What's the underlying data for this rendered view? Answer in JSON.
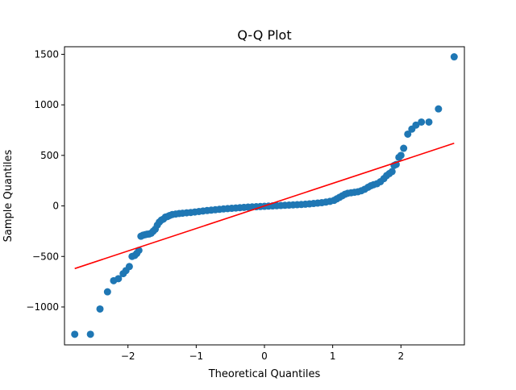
{
  "chart_data": {
    "type": "scatter",
    "title": "Q-Q Plot",
    "xlabel": "Theoretical Quantiles",
    "ylabel": "Sample Quantiles",
    "xlim": [
      -2.93,
      2.93
    ],
    "ylim": [
      -1375,
      1575
    ],
    "xticks": [
      -2,
      -1,
      0,
      1,
      2
    ],
    "xtick_labels": [
      "−2",
      "−1",
      "0",
      "1",
      "2"
    ],
    "yticks": [
      -1000,
      -500,
      0,
      500,
      1000,
      1500
    ],
    "ytick_labels": [
      "−1000",
      "−500",
      "0",
      "500",
      "1000",
      "1500"
    ],
    "grid": false,
    "marker_color": "#1f77b4",
    "line_color": "#ff0000",
    "points": [
      [
        -2.78,
        -1270
      ],
      [
        -2.55,
        -1270
      ],
      [
        -2.41,
        -1020
      ],
      [
        -2.3,
        -850
      ],
      [
        -2.21,
        -740
      ],
      [
        -2.14,
        -720
      ],
      [
        -2.07,
        -670
      ],
      [
        -2.03,
        -640
      ],
      [
        -1.98,
        -600
      ],
      [
        -1.94,
        -500
      ],
      [
        -1.9,
        -490
      ],
      [
        -1.87,
        -470
      ],
      [
        -1.84,
        -440
      ],
      [
        -1.81,
        -300
      ],
      [
        -1.78,
        -290
      ],
      [
        -1.75,
        -285
      ],
      [
        -1.72,
        -280
      ],
      [
        -1.69,
        -278
      ],
      [
        -1.66,
        -270
      ],
      [
        -1.63,
        -250
      ],
      [
        -1.6,
        -230
      ],
      [
        -1.57,
        -190
      ],
      [
        -1.54,
        -160
      ],
      [
        -1.51,
        -140
      ],
      [
        -1.48,
        -130
      ],
      [
        -1.45,
        -110
      ],
      [
        -1.42,
        -105
      ],
      [
        -1.39,
        -95
      ],
      [
        -1.35,
        -85
      ],
      [
        -1.3,
        -80
      ],
      [
        -1.25,
        -75
      ],
      [
        -1.2,
        -72
      ],
      [
        -1.14,
        -68
      ],
      [
        -1.08,
        -65
      ],
      [
        -1.02,
        -60
      ],
      [
        -0.96,
        -55
      ],
      [
        -0.9,
        -50
      ],
      [
        -0.84,
        -46
      ],
      [
        -0.78,
        -42
      ],
      [
        -0.72,
        -38
      ],
      [
        -0.66,
        -34
      ],
      [
        -0.6,
        -30
      ],
      [
        -0.54,
        -27
      ],
      [
        -0.48,
        -24
      ],
      [
        -0.42,
        -21
      ],
      [
        -0.36,
        -18
      ],
      [
        -0.3,
        -15
      ],
      [
        -0.24,
        -12
      ],
      [
        -0.18,
        -10
      ],
      [
        -0.12,
        -8
      ],
      [
        -0.06,
        -6
      ],
      [
        0.0,
        -4
      ],
      [
        0.06,
        -2
      ],
      [
        0.12,
        0
      ],
      [
        0.18,
        2
      ],
      [
        0.24,
        4
      ],
      [
        0.3,
        6
      ],
      [
        0.36,
        8
      ],
      [
        0.42,
        10
      ],
      [
        0.48,
        12
      ],
      [
        0.54,
        14
      ],
      [
        0.6,
        17
      ],
      [
        0.66,
        20
      ],
      [
        0.72,
        24
      ],
      [
        0.78,
        28
      ],
      [
        0.84,
        32
      ],
      [
        0.9,
        38
      ],
      [
        0.96,
        45
      ],
      [
        1.02,
        55
      ],
      [
        1.06,
        70
      ],
      [
        1.1,
        85
      ],
      [
        1.14,
        100
      ],
      [
        1.18,
        115
      ],
      [
        1.22,
        125
      ],
      [
        1.27,
        130
      ],
      [
        1.32,
        135
      ],
      [
        1.37,
        140
      ],
      [
        1.42,
        150
      ],
      [
        1.47,
        165
      ],
      [
        1.52,
        185
      ],
      [
        1.56,
        200
      ],
      [
        1.6,
        210
      ],
      [
        1.65,
        220
      ],
      [
        1.7,
        240
      ],
      [
        1.75,
        270
      ],
      [
        1.79,
        300
      ],
      [
        1.83,
        320
      ],
      [
        1.87,
        340
      ],
      [
        1.9,
        400
      ],
      [
        1.93,
        410
      ],
      [
        1.97,
        480
      ],
      [
        2.0,
        500
      ],
      [
        2.04,
        570
      ],
      [
        2.1,
        710
      ],
      [
        2.16,
        760
      ],
      [
        2.22,
        800
      ],
      [
        2.3,
        830
      ],
      [
        2.41,
        830
      ],
      [
        2.55,
        960
      ],
      [
        2.78,
        1475
      ]
    ],
    "reference_line": {
      "x": [
        -2.78,
        2.78
      ],
      "y": [
        -620,
        620
      ]
    }
  }
}
